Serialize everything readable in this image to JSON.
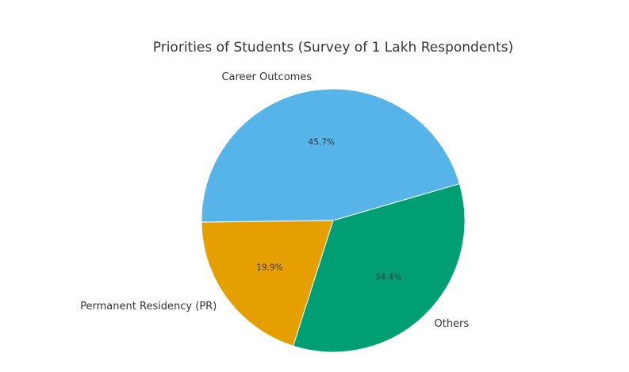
{
  "chart_data": {
    "type": "pie",
    "title": "Priorities of Students (Survey of 1 Lakh Respondents)",
    "categories": [
      "Career Outcomes",
      "Permanent Residency (PR)",
      "Others"
    ],
    "values": [
      45.7,
      19.9,
      34.4
    ],
    "labels": [
      "45.7%",
      "19.9%",
      "34.4%"
    ],
    "colors": [
      "#56B4E9",
      "#E69F00",
      "#009E73"
    ],
    "start_angle_deg": 16.2,
    "direction": "counterclockwise"
  }
}
